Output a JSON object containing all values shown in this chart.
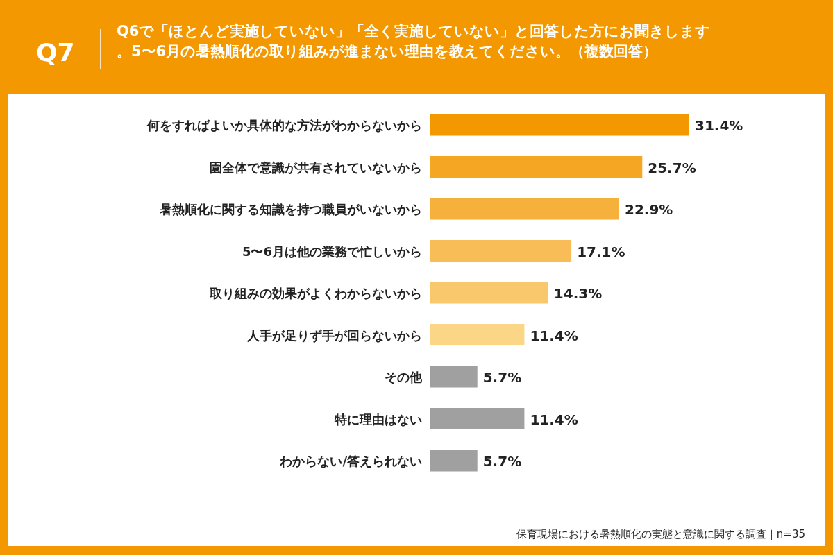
{
  "chart_data": {
    "type": "bar",
    "orientation": "horizontal",
    "subtitle": "Q7",
    "title": "Q6で「ほとんど実施していない」「全く実施していない」と回答した方にお聞きします。5〜6月の暑熱順化の取り組みが進まない理由を教えてください。（複数回答）",
    "categories": [
      "何をすればよいか具体的な方法がわからないから",
      "園全体で意識が共有されていないから",
      "暑熱順化に関する知識を持つ職員がいないから",
      "5〜6月は他の業務で忙しいから",
      "取り組みの効果がよくわからないから",
      "人手が足りず手が回らないから",
      "その他",
      "特に理由はない",
      "わからない/答えられない"
    ],
    "values": [
      31.4,
      25.7,
      22.9,
      17.1,
      14.3,
      11.4,
      5.7,
      11.4,
      5.7
    ],
    "colors": [
      "#f39800",
      "#f5a623",
      "#f6b03c",
      "#f8bd57",
      "#fac86c",
      "#fcd687",
      "#a0a0a0",
      "#a0a0a0",
      "#a0a0a0"
    ],
    "value_labels": [
      "31.4%",
      "25.7%",
      "22.9%",
      "17.1%",
      "14.3%",
      "11.4%",
      "5.7%",
      "11.4%",
      "5.7%"
    ],
    "annotations": [
      "保育現場における暑熱順化の実態と意識に関する調査｜n=35"
    ]
  }
}
